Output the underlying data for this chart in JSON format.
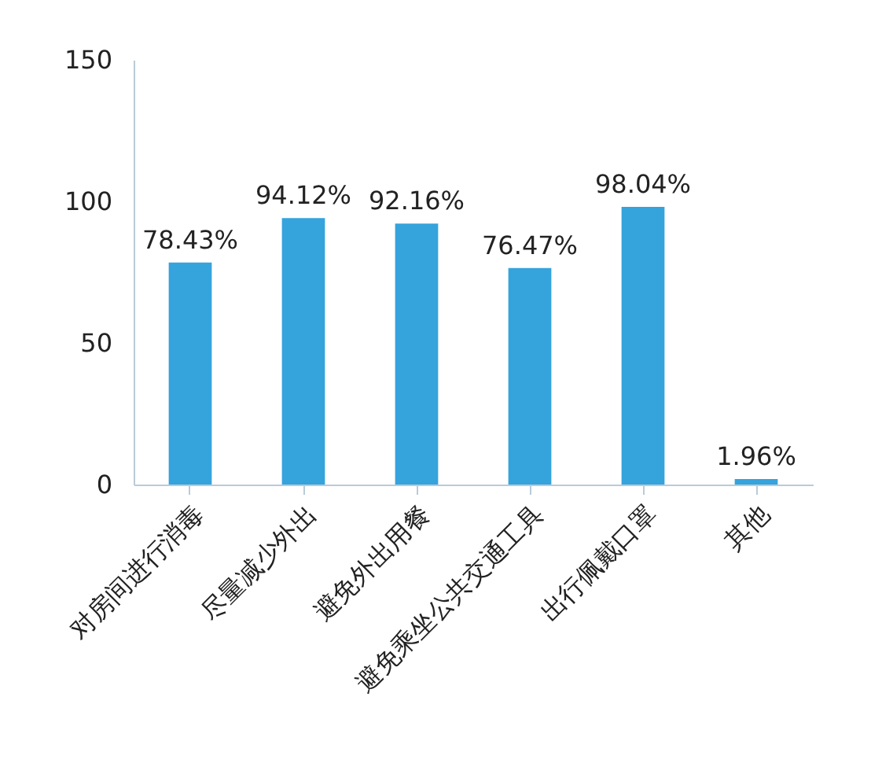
{
  "chart_data": {
    "type": "bar",
    "categories": [
      "对房间进行消毒",
      "尽量减少外出",
      "避免外出用餐",
      "避免乘坐公共交通工具",
      "出行佩戴口罩",
      "其他"
    ],
    "values": [
      78.43,
      94.12,
      92.16,
      76.47,
      98.04,
      1.96
    ],
    "value_labels": [
      "78.43%",
      "94.12%",
      "92.16%",
      "76.47%",
      "98.04%",
      "1.96%"
    ],
    "color": "#35a3dc",
    "ylim": [
      0,
      150
    ],
    "yticks": [
      0,
      50,
      100,
      150
    ],
    "grid": false
  }
}
